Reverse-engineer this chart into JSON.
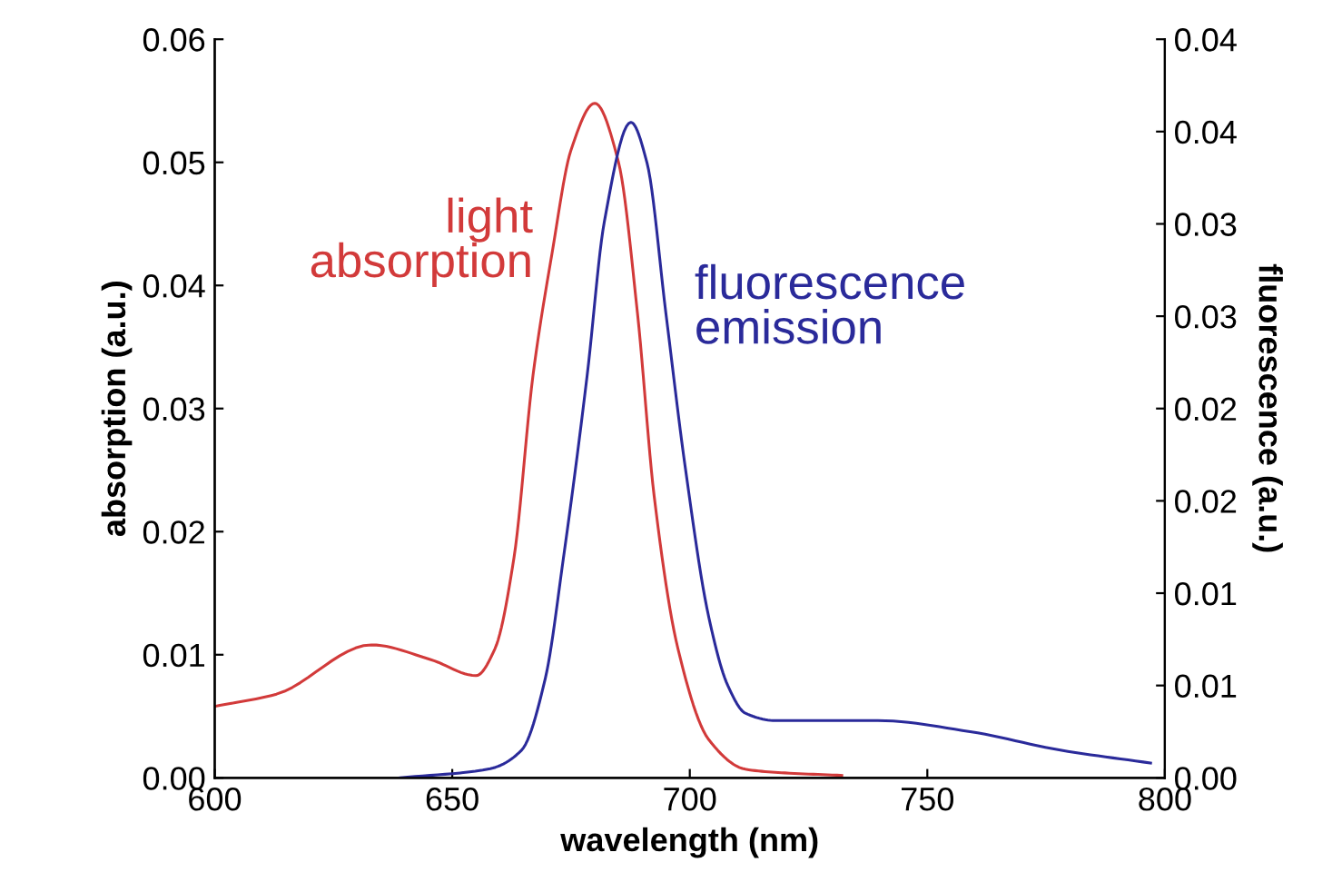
{
  "chart_data": {
    "type": "line",
    "xlabel": "wavelength (nm)",
    "ylabel": "absorption (a.u.)",
    "y2label": "fluorescence (a.u.)",
    "xlim": [
      600,
      800
    ],
    "xticks": [
      600,
      650,
      700,
      750,
      800
    ],
    "ylim": [
      0,
      0.06
    ],
    "yticks": [
      {
        "value": 0,
        "label": "0.00"
      },
      {
        "value": 0.01,
        "label": "0.01"
      },
      {
        "value": 0.02,
        "label": "0.02"
      },
      {
        "value": 0.03,
        "label": "0.03"
      },
      {
        "value": 0.04,
        "label": "0.04"
      },
      {
        "value": 0.05,
        "label": "0.05"
      },
      {
        "value": 0.06,
        "label": "0.06"
      }
    ],
    "y2lim": [
      0,
      0.04
    ],
    "y2ticks": [
      {
        "value": 0,
        "label": "0.00"
      },
      {
        "value": 0.005,
        "label": "0.01"
      },
      {
        "value": 0.01,
        "label": "0.01"
      },
      {
        "value": 0.015,
        "label": "0.02"
      },
      {
        "value": 0.02,
        "label": "0.02"
      },
      {
        "value": 0.025,
        "label": "0.03"
      },
      {
        "value": 0.03,
        "label": "0.03"
      },
      {
        "value": 0.035,
        "label": "0.04"
      },
      {
        "value": 0.04,
        "label": "0.04"
      }
    ],
    "grid": false,
    "series": [
      {
        "name": "light\nabsorption",
        "color": "#d23a3a",
        "x": [
          600,
          613,
          633,
          645.5,
          655,
          659,
          663,
          667,
          671,
          675,
          680,
          685,
          689,
          692.5,
          697.5,
          704,
          711.7,
          720,
          732
        ],
        "values": [
          0.0058,
          0.0068,
          0.0108,
          0.0096,
          0.0083,
          0.0105,
          0.0179,
          0.0327,
          0.0426,
          0.051,
          0.0548,
          0.05,
          0.0377,
          0.0229,
          0.0105,
          0.0031,
          0.0007,
          0.0004,
          0.0002
        ]
      },
      {
        "name": "fluorescence\nemission",
        "color": "#2a2a9a",
        "axis": "y2",
        "x": [
          639,
          658,
          664.6,
          669.6,
          673.4,
          678.4,
          682,
          687.6,
          691,
          695,
          699,
          704,
          708,
          711.7,
          718,
          739.6,
          759,
          778,
          797
        ],
        "values": [
          0,
          0.0005,
          0.0015,
          0.0054,
          0.0119,
          0.0218,
          0.0301,
          0.0355,
          0.0333,
          0.0251,
          0.0169,
          0.0087,
          0.005,
          0.0035,
          0.0031,
          0.0031,
          0.0025,
          0.0015,
          0.0008
        ]
      }
    ]
  }
}
